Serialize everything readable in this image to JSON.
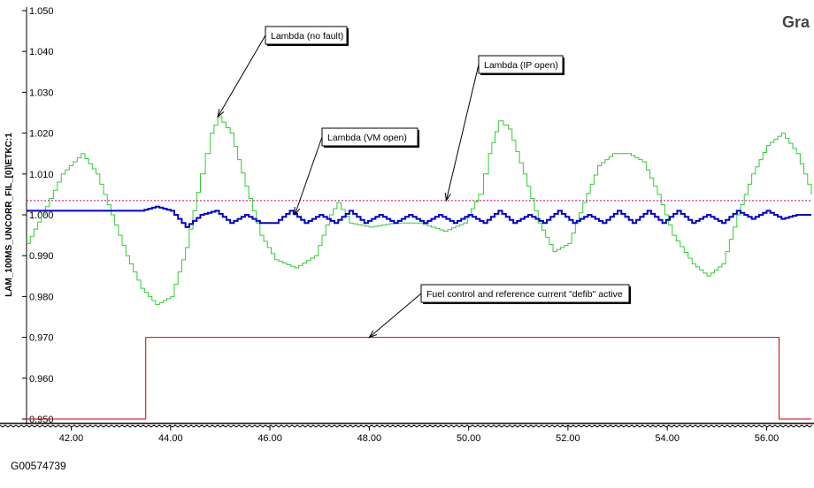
{
  "figure_id": "G00574739",
  "corner_label": "Gra",
  "chart_data": {
    "type": "line",
    "title": "",
    "xlabel": "",
    "ylabel": "LAM_100MS_UNCORR_FIL_[0]\\ETKC:1",
    "xlim": [
      41.1,
      56.9
    ],
    "ylim": [
      0.95,
      1.05
    ],
    "x_ticks": [
      42,
      44,
      46,
      48,
      50,
      52,
      54,
      56
    ],
    "x_tick_labels": [
      "42.00",
      "44.00",
      "46.00",
      "48.00",
      "50.00",
      "52.00",
      "54.00",
      "56.00"
    ],
    "y_ticks": [
      0.95,
      0.96,
      0.97,
      0.98,
      0.99,
      1.0,
      1.01,
      1.02,
      1.03,
      1.04,
      1.05
    ],
    "y_tick_labels": [
      "0.950",
      "0.960",
      "0.970",
      "0.980",
      "0.990",
      "1.000",
      "1.010",
      "1.020",
      "1.030",
      "1.040",
      "1.050"
    ],
    "grid": false,
    "series": [
      {
        "name": "Lambda (no fault)",
        "color": "#33cc33",
        "style": "step",
        "points": [
          [
            41.1,
            0.993
          ],
          [
            41.4,
            1.0
          ],
          [
            41.8,
            1.01
          ],
          [
            42.2,
            1.015
          ],
          [
            42.5,
            1.01
          ],
          [
            42.8,
            1.0
          ],
          [
            43.1,
            0.99
          ],
          [
            43.4,
            0.982
          ],
          [
            43.7,
            0.978
          ],
          [
            44.0,
            0.98
          ],
          [
            44.3,
            0.992
          ],
          [
            44.6,
            1.01
          ],
          [
            44.8,
            1.02
          ],
          [
            44.95,
            1.024
          ],
          [
            45.2,
            1.02
          ],
          [
            45.5,
            1.007
          ],
          [
            45.8,
            0.995
          ],
          [
            46.1,
            0.989
          ],
          [
            46.5,
            0.987
          ],
          [
            46.9,
            0.99
          ],
          [
            47.2,
            1.0
          ],
          [
            47.35,
            1.003
          ],
          [
            47.6,
            0.998
          ],
          [
            48.0,
            0.997
          ],
          [
            48.5,
            0.998
          ],
          [
            49.0,
            0.998
          ],
          [
            49.5,
            0.996
          ],
          [
            49.9,
            0.998
          ],
          [
            50.2,
            1.005
          ],
          [
            50.4,
            1.015
          ],
          [
            50.6,
            1.023
          ],
          [
            50.8,
            1.021
          ],
          [
            51.1,
            1.01
          ],
          [
            51.4,
            0.998
          ],
          [
            51.7,
            0.991
          ],
          [
            52.0,
            0.993
          ],
          [
            52.3,
            1.003
          ],
          [
            52.6,
            1.012
          ],
          [
            52.9,
            1.015
          ],
          [
            53.2,
            1.015
          ],
          [
            53.5,
            1.013
          ],
          [
            53.8,
            1.005
          ],
          [
            54.1,
            0.995
          ],
          [
            54.5,
            0.988
          ],
          [
            54.8,
            0.985
          ],
          [
            55.1,
            0.988
          ],
          [
            55.4,
            1.0
          ],
          [
            55.7,
            1.01
          ],
          [
            56.0,
            1.017
          ],
          [
            56.3,
            1.02
          ],
          [
            56.6,
            1.015
          ],
          [
            56.9,
            1.005
          ]
        ]
      },
      {
        "name": "Lambda (VM open)",
        "color": "#0000cc",
        "style": "step",
        "points": [
          [
            41.1,
            1.001
          ],
          [
            41.5,
            1.001
          ],
          [
            42.0,
            1.001
          ],
          [
            42.5,
            1.001
          ],
          [
            43.0,
            1.001
          ],
          [
            43.4,
            1.001
          ],
          [
            43.7,
            1.002
          ],
          [
            44.0,
            1.001
          ],
          [
            44.3,
            0.997
          ],
          [
            44.6,
            1.0
          ],
          [
            44.9,
            1.001
          ],
          [
            45.2,
            0.998
          ],
          [
            45.5,
            1.0
          ],
          [
            45.8,
            0.998
          ],
          [
            46.1,
            0.998
          ],
          [
            46.4,
            1.001
          ],
          [
            46.7,
            0.998
          ],
          [
            47.0,
            1.0
          ],
          [
            47.3,
            0.998
          ],
          [
            47.6,
            1.001
          ],
          [
            47.9,
            0.998
          ],
          [
            48.2,
            1.0
          ],
          [
            48.5,
            0.998
          ],
          [
            48.8,
            1.0
          ],
          [
            49.1,
            0.998
          ],
          [
            49.4,
            1.0
          ],
          [
            49.7,
            0.998
          ],
          [
            50.0,
            1.0
          ],
          [
            50.3,
            0.998
          ],
          [
            50.6,
            1.001
          ],
          [
            50.9,
            0.998
          ],
          [
            51.2,
            1.0
          ],
          [
            51.5,
            0.998
          ],
          [
            51.8,
            1.001
          ],
          [
            52.1,
            0.998
          ],
          [
            52.4,
            1.0
          ],
          [
            52.7,
            0.998
          ],
          [
            53.0,
            1.001
          ],
          [
            53.3,
            0.998
          ],
          [
            53.6,
            1.001
          ],
          [
            53.9,
            0.998
          ],
          [
            54.2,
            1.001
          ],
          [
            54.5,
            0.998
          ],
          [
            54.8,
            1.0
          ],
          [
            55.1,
            0.998
          ],
          [
            55.4,
            1.001
          ],
          [
            55.7,
            0.999
          ],
          [
            56.0,
            1.001
          ],
          [
            56.3,
            0.999
          ],
          [
            56.6,
            1.0
          ],
          [
            56.9,
            1.0
          ]
        ]
      },
      {
        "name": "Lambda (IP open)",
        "color": "#cc0066",
        "style": "dotted",
        "points": [
          [
            41.1,
            1.0035
          ],
          [
            56.9,
            1.0035
          ]
        ]
      },
      {
        "name": "Fuel control and reference current \"defib\" active",
        "color": "#cc0000",
        "style": "step",
        "points": [
          [
            41.1,
            0.95
          ],
          [
            43.5,
            0.95
          ],
          [
            43.5,
            0.97
          ],
          [
            56.25,
            0.97
          ],
          [
            56.25,
            0.95
          ],
          [
            56.9,
            0.95
          ]
        ]
      }
    ],
    "annotations": [
      {
        "label": "Lambda (no fault)",
        "target": [
          44.95,
          1.024
        ]
      },
      {
        "label": "Lambda (IP open)",
        "target": [
          49.55,
          1.0035
        ]
      },
      {
        "label": "Lambda (VM open)",
        "target": [
          46.5,
          1.0
        ]
      },
      {
        "label": "Fuel control and reference current \"defib\" active",
        "target": [
          48.0,
          0.97
        ]
      }
    ]
  }
}
